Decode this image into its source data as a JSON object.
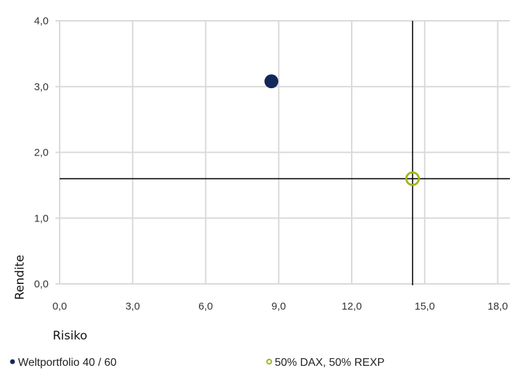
{
  "chart_data": {
    "type": "scatter",
    "title": "",
    "xlabel": "Risiko",
    "ylabel": "Rendite",
    "xlim": [
      0,
      18.5
    ],
    "ylim": [
      0,
      4
    ],
    "x_ticks": [
      "0,0",
      "3,0",
      "6,0",
      "9,0",
      "12,0",
      "15,0",
      "18,0"
    ],
    "x_tick_values": [
      0,
      3,
      6,
      9,
      12,
      15,
      18
    ],
    "y_ticks": [
      "0,0",
      "1,0",
      "2,0",
      "3,0",
      "4,0"
    ],
    "y_tick_values": [
      0,
      1,
      2,
      3,
      4
    ],
    "grid": true,
    "legend_position": "bottom",
    "series": [
      {
        "name": "Weltportfolio 40 / 60",
        "color": "#14275a",
        "marker": "filled-circle",
        "points": [
          {
            "x": 8.7,
            "y": 3.08
          }
        ]
      },
      {
        "name": "50% DAX, 50% REXP",
        "color": "#a4b51b",
        "marker": "hollow-circle",
        "points": [
          {
            "x": 14.5,
            "y": 1.6
          }
        ]
      }
    ],
    "reference_lines": {
      "vertical_x": 14.5,
      "horizontal_y": 1.6,
      "color": "#000000"
    },
    "grid_color": "#d9d9d9"
  }
}
